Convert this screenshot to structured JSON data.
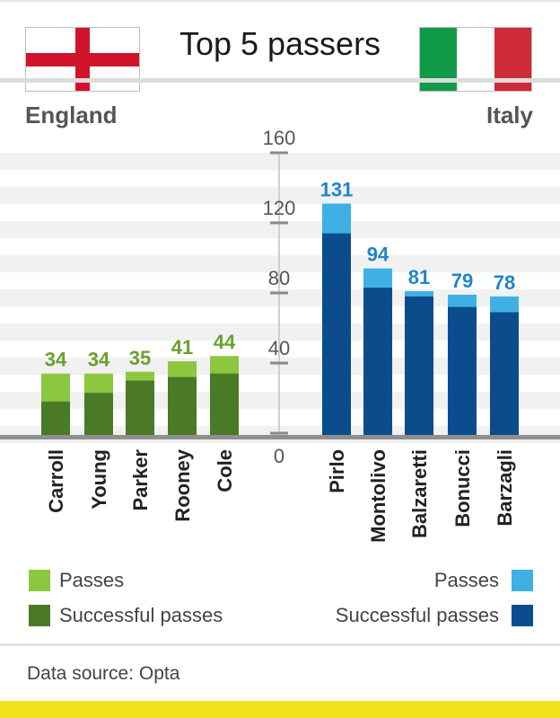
{
  "title": "Top 5 passers",
  "teams": {
    "left": {
      "name": "England",
      "flag": "england-flag"
    },
    "right": {
      "name": "Italy",
      "flag": "italy-flag"
    }
  },
  "colors": {
    "england_passes": "#8dc63f",
    "england_successful": "#4a7a26",
    "italy_passes": "#3fb0e3",
    "italy_successful": "#0b4d8c",
    "england_label": "#6aa12f",
    "italy_label": "#1e86c8",
    "flag_red": "#d0142c",
    "italy_green": "#119a48",
    "italy_red": "#ce2b37"
  },
  "chart_data": {
    "type": "bar",
    "title": "Top 5 passers",
    "ylim": [
      0,
      160
    ],
    "yticks": [
      0,
      40,
      80,
      120,
      160
    ],
    "groups": [
      {
        "team": "England",
        "categories": [
          "Carroll",
          "Young",
          "Parker",
          "Rooney",
          "Cole"
        ],
        "series": [
          {
            "name": "Passes",
            "values": [
              34,
              34,
              35,
              41,
              44
            ]
          },
          {
            "name": "Successful passes",
            "values": [
              18,
              23,
              30,
              32,
              34
            ]
          }
        ]
      },
      {
        "team": "Italy",
        "categories": [
          "Pirlo",
          "Montolivo",
          "Balzaretti",
          "Bonucci",
          "Barzagli"
        ],
        "series": [
          {
            "name": "Passes",
            "values": [
              131,
              94,
              81,
              79,
              78
            ]
          },
          {
            "name": "Successful passes",
            "values": [
              114,
              83,
              78,
              72,
              69
            ]
          }
        ]
      }
    ]
  },
  "legend": {
    "left": [
      {
        "label": "Passes"
      },
      {
        "label": "Successful passes"
      }
    ],
    "right": [
      {
        "label": "Passes"
      },
      {
        "label": "Successful passes"
      }
    ]
  },
  "source": "Data source: Opta"
}
